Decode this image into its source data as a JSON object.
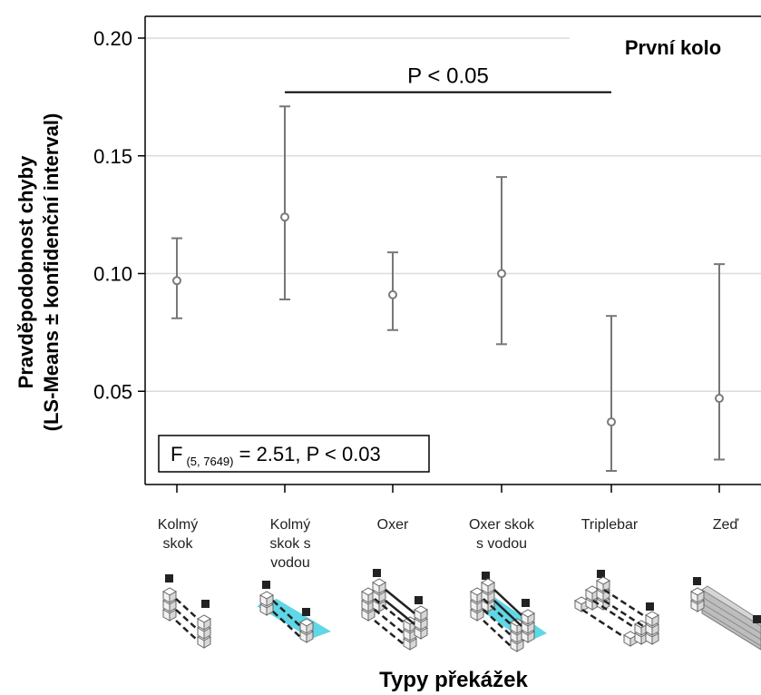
{
  "chart_data": {
    "type": "scatter",
    "subtype": "point-estimate-with-confidence-intervals",
    "panel_title": "První kolo",
    "ylabel_lines": [
      "Pravděpodobnost chyby",
      "(LS-Means ± konfidenční interval)"
    ],
    "xlabel": "Typy překážek",
    "ylim": [
      0.0,
      0.2
    ],
    "yticks": [
      0.05,
      0.1,
      0.15,
      0.2
    ],
    "ytick_labels": [
      "0.05",
      "0.10",
      "0.15",
      "0.20"
    ],
    "grid": "horizontal",
    "categories": [
      {
        "label_lines": [
          "Kolmý",
          "skok"
        ],
        "icon": "vertical-fence-icon"
      },
      {
        "label_lines": [
          "Kolmý",
          "skok  s",
          "vodou"
        ],
        "icon": "vertical-fence-water-icon"
      },
      {
        "label_lines": [
          "Oxer"
        ],
        "icon": "oxer-fence-icon"
      },
      {
        "label_lines": [
          "Oxer skok",
          "s vodou"
        ],
        "icon": "oxer-water-fence-icon"
      },
      {
        "label_lines": [
          "Triplebar"
        ],
        "icon": "triplebar-fence-icon"
      },
      {
        "label_lines": [
          "Zeď"
        ],
        "icon": "wall-fence-icon"
      }
    ],
    "series": [
      {
        "means": [
          0.097,
          0.124,
          0.091,
          0.1,
          0.037,
          0.047
        ],
        "lower": [
          0.081,
          0.089,
          0.076,
          0.07,
          0.016,
          0.021
        ],
        "upper": [
          0.115,
          0.171,
          0.109,
          0.141,
          0.082,
          0.104
        ]
      }
    ],
    "significance": {
      "label": "P < 0.05",
      "from_index": 1,
      "to_index": 4,
      "y": 0.177
    },
    "stat_box": {
      "main": "F",
      "sub": "(5, 7649)",
      "rest": " = 2.51, P < 0.03"
    }
  },
  "colors": {
    "marker": "#7a7a7a",
    "errorbar": "#777777",
    "grid": "#dcdcdc",
    "axis": "#000000",
    "water": "#5fd7e6",
    "pole": "#222222",
    "block": "#f2f2f2"
  }
}
